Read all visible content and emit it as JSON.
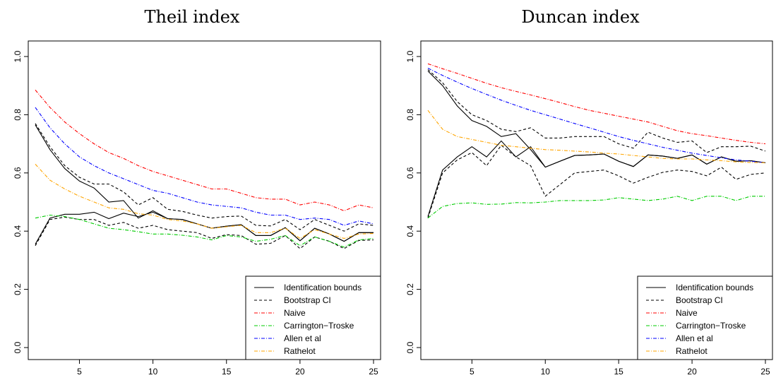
{
  "chart_data": [
    {
      "type": "line",
      "title": "Theil index",
      "xlabel": "",
      "ylabel": "",
      "xlim": [
        2,
        25
      ],
      "ylim": [
        0,
        1
      ],
      "x_ticks": [
        5,
        10,
        15,
        20,
        25
      ],
      "y_ticks": [
        "0.0",
        "0.2",
        "0.4",
        "0.6",
        "0.8",
        "1.0"
      ],
      "legend_placement": "bottom-right",
      "x": [
        2,
        3,
        4,
        5,
        6,
        7,
        8,
        9,
        10,
        11,
        12,
        13,
        14,
        15,
        16,
        17,
        18,
        19,
        20,
        21,
        22,
        23,
        24,
        25
      ],
      "series": [
        {
          "name": "Identification bounds",
          "color": "#000000",
          "dash": "",
          "values": [
            0.765,
            0.68,
            0.615,
            0.572,
            0.548,
            0.5,
            0.505,
            0.445,
            0.47,
            0.443,
            0.44,
            0.425,
            0.41,
            0.417,
            0.422,
            0.385,
            0.385,
            0.412,
            0.367,
            0.41,
            0.39,
            0.365,
            0.395,
            0.395
          ]
        },
        {
          "name": "Identification bounds",
          "color": "#000000",
          "dash": "",
          "values": [
            0.355,
            0.445,
            0.458,
            0.458,
            0.465,
            0.443,
            0.462,
            0.45,
            0.465,
            0.443,
            0.44,
            0.425,
            0.41,
            0.417,
            0.422,
            0.385,
            0.385,
            0.412,
            0.367,
            0.41,
            0.39,
            0.365,
            0.395,
            0.395
          ]
        },
        {
          "name": "Bootstrap CI",
          "color": "#000000",
          "dash": "4,3",
          "values": [
            0.77,
            0.69,
            0.625,
            0.585,
            0.562,
            0.562,
            0.535,
            0.49,
            0.515,
            0.475,
            0.468,
            0.455,
            0.445,
            0.45,
            0.452,
            0.42,
            0.418,
            0.44,
            0.405,
            0.44,
            0.42,
            0.4,
            0.425,
            0.42
          ]
        },
        {
          "name": "Bootstrap CI",
          "color": "#000000",
          "dash": "4,3",
          "values": [
            0.35,
            0.44,
            0.448,
            0.44,
            0.44,
            0.42,
            0.43,
            0.41,
            0.42,
            0.405,
            0.4,
            0.395,
            0.375,
            0.388,
            0.385,
            0.355,
            0.358,
            0.385,
            0.34,
            0.38,
            0.365,
            0.34,
            0.368,
            0.37
          ]
        },
        {
          "name": "Naive",
          "color": "#ff0000",
          "dash": "5,2,1,2",
          "values": [
            0.885,
            0.825,
            0.775,
            0.735,
            0.7,
            0.67,
            0.65,
            0.625,
            0.605,
            0.59,
            0.575,
            0.56,
            0.545,
            0.545,
            0.53,
            0.515,
            0.51,
            0.51,
            0.49,
            0.5,
            0.49,
            0.47,
            0.49,
            0.48
          ]
        },
        {
          "name": "Carrington−Troske",
          "color": "#00cc00",
          "dash": "5,2,1,2",
          "values": [
            0.445,
            0.455,
            0.45,
            0.44,
            0.425,
            0.41,
            0.405,
            0.398,
            0.39,
            0.39,
            0.386,
            0.38,
            0.37,
            0.385,
            0.38,
            0.365,
            0.372,
            0.385,
            0.35,
            0.38,
            0.365,
            0.345,
            0.37,
            0.375
          ]
        },
        {
          "name": "Allen et al",
          "color": "#0000ff",
          "dash": "5,2,1,2",
          "values": [
            0.825,
            0.755,
            0.7,
            0.655,
            0.625,
            0.6,
            0.58,
            0.56,
            0.54,
            0.53,
            0.515,
            0.5,
            0.49,
            0.485,
            0.48,
            0.465,
            0.455,
            0.455,
            0.44,
            0.445,
            0.44,
            0.42,
            0.435,
            0.425
          ]
        },
        {
          "name": "Rathelot",
          "color": "#ffa500",
          "dash": "5,2,1,2",
          "values": [
            0.63,
            0.575,
            0.545,
            0.52,
            0.5,
            0.48,
            0.475,
            0.46,
            0.455,
            0.44,
            0.435,
            0.425,
            0.41,
            0.415,
            0.42,
            0.395,
            0.395,
            0.41,
            0.375,
            0.405,
            0.39,
            0.375,
            0.39,
            0.392
          ]
        }
      ],
      "legend": [
        {
          "label": "Identification bounds",
          "color": "#000000",
          "dash": ""
        },
        {
          "label": "Bootstrap CI",
          "color": "#000000",
          "dash": "4,3"
        },
        {
          "label": "Naive",
          "color": "#ff0000",
          "dash": "5,2,1,2"
        },
        {
          "label": "Carrington−Troske",
          "color": "#00cc00",
          "dash": "5,2,1,2"
        },
        {
          "label": "Allen et al",
          "color": "#0000ff",
          "dash": "5,2,1,2"
        },
        {
          "label": "Rathelot",
          "color": "#ffa500",
          "dash": "5,2,1,2"
        }
      ]
    },
    {
      "type": "line",
      "title": "Duncan index",
      "xlabel": "",
      "ylabel": "",
      "xlim": [
        2,
        25
      ],
      "ylim": [
        0,
        1
      ],
      "x_ticks": [
        5,
        10,
        15,
        20,
        25
      ],
      "y_ticks": [
        "0.0",
        "0.2",
        "0.4",
        "0.6",
        "0.8",
        "1.0"
      ],
      "legend_placement": "bottom-right",
      "x": [
        2,
        3,
        4,
        5,
        6,
        7,
        8,
        9,
        10,
        11,
        12,
        13,
        14,
        15,
        16,
        17,
        18,
        19,
        20,
        21,
        22,
        23,
        24,
        25
      ],
      "series": [
        {
          "name": "Identification bounds",
          "color": "#000000",
          "dash": "",
          "values": [
            0.95,
            0.9,
            0.83,
            0.78,
            0.76,
            0.725,
            0.735,
            0.68,
            0.62,
            0.64,
            0.66,
            0.662,
            0.665,
            0.64,
            0.622,
            0.662,
            0.658,
            0.65,
            0.662,
            0.63,
            0.655,
            0.64,
            0.642,
            0.635
          ]
        },
        {
          "name": "Identification bounds",
          "color": "#000000",
          "dash": "",
          "values": [
            0.45,
            0.61,
            0.655,
            0.69,
            0.655,
            0.71,
            0.655,
            0.69,
            0.62,
            0.64,
            0.66,
            0.662,
            0.665,
            0.64,
            0.622,
            0.662,
            0.658,
            0.65,
            0.662,
            0.63,
            0.655,
            0.64,
            0.642,
            0.635
          ]
        },
        {
          "name": "Bootstrap CI",
          "color": "#000000",
          "dash": "4,3",
          "values": [
            0.955,
            0.91,
            0.845,
            0.8,
            0.78,
            0.75,
            0.742,
            0.755,
            0.72,
            0.72,
            0.725,
            0.725,
            0.725,
            0.7,
            0.685,
            0.74,
            0.72,
            0.705,
            0.71,
            0.67,
            0.69,
            0.69,
            0.692,
            0.675
          ]
        },
        {
          "name": "Bootstrap CI",
          "color": "#000000",
          "dash": "4,3",
          "values": [
            0.445,
            0.6,
            0.645,
            0.67,
            0.625,
            0.695,
            0.655,
            0.625,
            0.52,
            0.56,
            0.6,
            0.605,
            0.61,
            0.59,
            0.565,
            0.585,
            0.602,
            0.61,
            0.605,
            0.59,
            0.62,
            0.578,
            0.595,
            0.6
          ]
        },
        {
          "name": "Naive",
          "color": "#ff0000",
          "dash": "5,2,1,2",
          "values": [
            0.975,
            0.958,
            0.942,
            0.925,
            0.908,
            0.893,
            0.88,
            0.868,
            0.855,
            0.842,
            0.828,
            0.815,
            0.805,
            0.795,
            0.785,
            0.775,
            0.76,
            0.745,
            0.735,
            0.728,
            0.72,
            0.712,
            0.705,
            0.7
          ]
        },
        {
          "name": "Carrington−Troske",
          "color": "#00cc00",
          "dash": "5,2,1,2",
          "values": [
            0.445,
            0.485,
            0.495,
            0.497,
            0.492,
            0.493,
            0.498,
            0.497,
            0.5,
            0.505,
            0.505,
            0.505,
            0.507,
            0.515,
            0.51,
            0.505,
            0.51,
            0.52,
            0.505,
            0.52,
            0.52,
            0.505,
            0.52,
            0.52
          ]
        },
        {
          "name": "Allen et al",
          "color": "#0000ff",
          "dash": "5,2,1,2",
          "values": [
            0.96,
            0.935,
            0.912,
            0.89,
            0.87,
            0.85,
            0.832,
            0.815,
            0.8,
            0.785,
            0.77,
            0.755,
            0.74,
            0.725,
            0.712,
            0.7,
            0.688,
            0.678,
            0.668,
            0.66,
            0.652,
            0.645,
            0.64,
            0.635
          ]
        },
        {
          "name": "Rathelot",
          "color": "#ffa500",
          "dash": "5,2,1,2",
          "values": [
            0.815,
            0.75,
            0.725,
            0.715,
            0.705,
            0.695,
            0.69,
            0.685,
            0.68,
            0.678,
            0.675,
            0.672,
            0.668,
            0.665,
            0.66,
            0.655,
            0.65,
            0.648,
            0.648,
            0.645,
            0.642,
            0.638,
            0.636,
            0.635
          ]
        }
      ],
      "legend": [
        {
          "label": "Identification bounds",
          "color": "#000000",
          "dash": ""
        },
        {
          "label": "Bootstrap CI",
          "color": "#000000",
          "dash": "4,3"
        },
        {
          "label": "Naive",
          "color": "#ff0000",
          "dash": "5,2,1,2"
        },
        {
          "label": "Carrington−Troske",
          "color": "#00cc00",
          "dash": "5,2,1,2"
        },
        {
          "label": "Allen et al",
          "color": "#0000ff",
          "dash": "5,2,1,2"
        },
        {
          "label": "Rathelot",
          "color": "#ffa500",
          "dash": "5,2,1,2"
        }
      ]
    }
  ]
}
